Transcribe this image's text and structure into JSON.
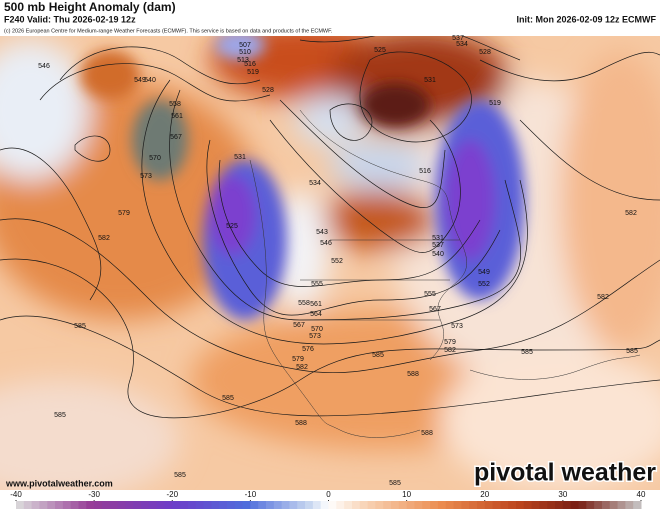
{
  "header": {
    "title": "500 mb Height Anomaly (dam)",
    "valid": "F240 Valid: Thu 2026-02-19 12z",
    "init": "Init: Mon 2026-02-09 12z ECMWF",
    "credit": "(c) 2026 European Centre for Medium-range Weather Forecasts (ECMWF). This service is based on data and products of the ECMWF."
  },
  "footer": {
    "website": "www.pivotalweather.com",
    "logo": "pivotal weather"
  },
  "colorbar": {
    "ticks": [
      -40,
      -30,
      -20,
      -10,
      0,
      10,
      20,
      30,
      40
    ]
  },
  "contour_labels": [
    "546",
    "540",
    "549",
    "558",
    "561",
    "567",
    "570",
    "573",
    "579",
    "582",
    "585",
    "507",
    "510",
    "513",
    "516",
    "519",
    "528",
    "525",
    "531",
    "537",
    "534",
    "528",
    "519",
    "516",
    "525",
    "531",
    "534",
    "543",
    "546",
    "552",
    "555",
    "558",
    "561",
    "564",
    "567",
    "570",
    "573",
    "576",
    "579",
    "582",
    "585",
    "588",
    "585",
    "588",
    "585",
    "588",
    "582",
    "582",
    "585",
    "585",
    "585",
    "585",
    "549",
    "552",
    "555",
    "567",
    "573",
    "579",
    "582",
    "540",
    "537",
    "531"
  ]
}
